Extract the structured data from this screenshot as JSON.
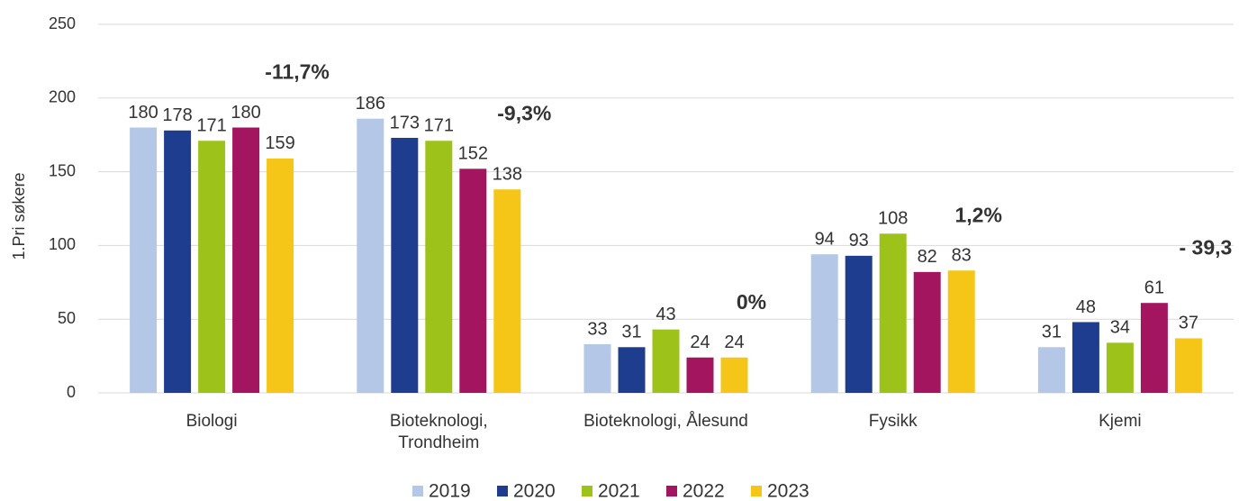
{
  "chart_data": {
    "type": "bar",
    "y_label": "1.Pri søkere",
    "categories": [
      "Biologi",
      "Bioteknologi,\nTrondheim",
      "Bioteknologi, Ålesund",
      "Fysikk",
      "Kjemi"
    ],
    "series": [
      {
        "name": "2019",
        "color": "#b4c7e7",
        "values": [
          180,
          186,
          33,
          94,
          31
        ]
      },
      {
        "name": "2020",
        "color": "#1f3d8f",
        "values": [
          178,
          173,
          31,
          93,
          48
        ]
      },
      {
        "name": "2021",
        "color": "#9dc21a",
        "values": [
          171,
          171,
          43,
          108,
          34
        ]
      },
      {
        "name": "2022",
        "color": "#a3165f",
        "values": [
          180,
          152,
          24,
          82,
          61
        ]
      },
      {
        "name": "2023",
        "color": "#f5c518",
        "values": [
          159,
          138,
          24,
          83,
          37
        ]
      }
    ],
    "annotations": [
      {
        "text": "-11,7%",
        "color": "#ff1a1a"
      },
      {
        "text": "-9,3%",
        "color": "#ff1a1a"
      },
      {
        "text": "0%",
        "color": "#22b04b"
      },
      {
        "text": "1,2%",
        "color": "#22b04b"
      },
      {
        "text": "- 39,3",
        "color": "#ff1a1a"
      }
    ],
    "ylim": [
      0,
      250
    ],
    "yticks": [
      0,
      50,
      100,
      150,
      200,
      250
    ],
    "grid": true,
    "legend": "bottom"
  }
}
